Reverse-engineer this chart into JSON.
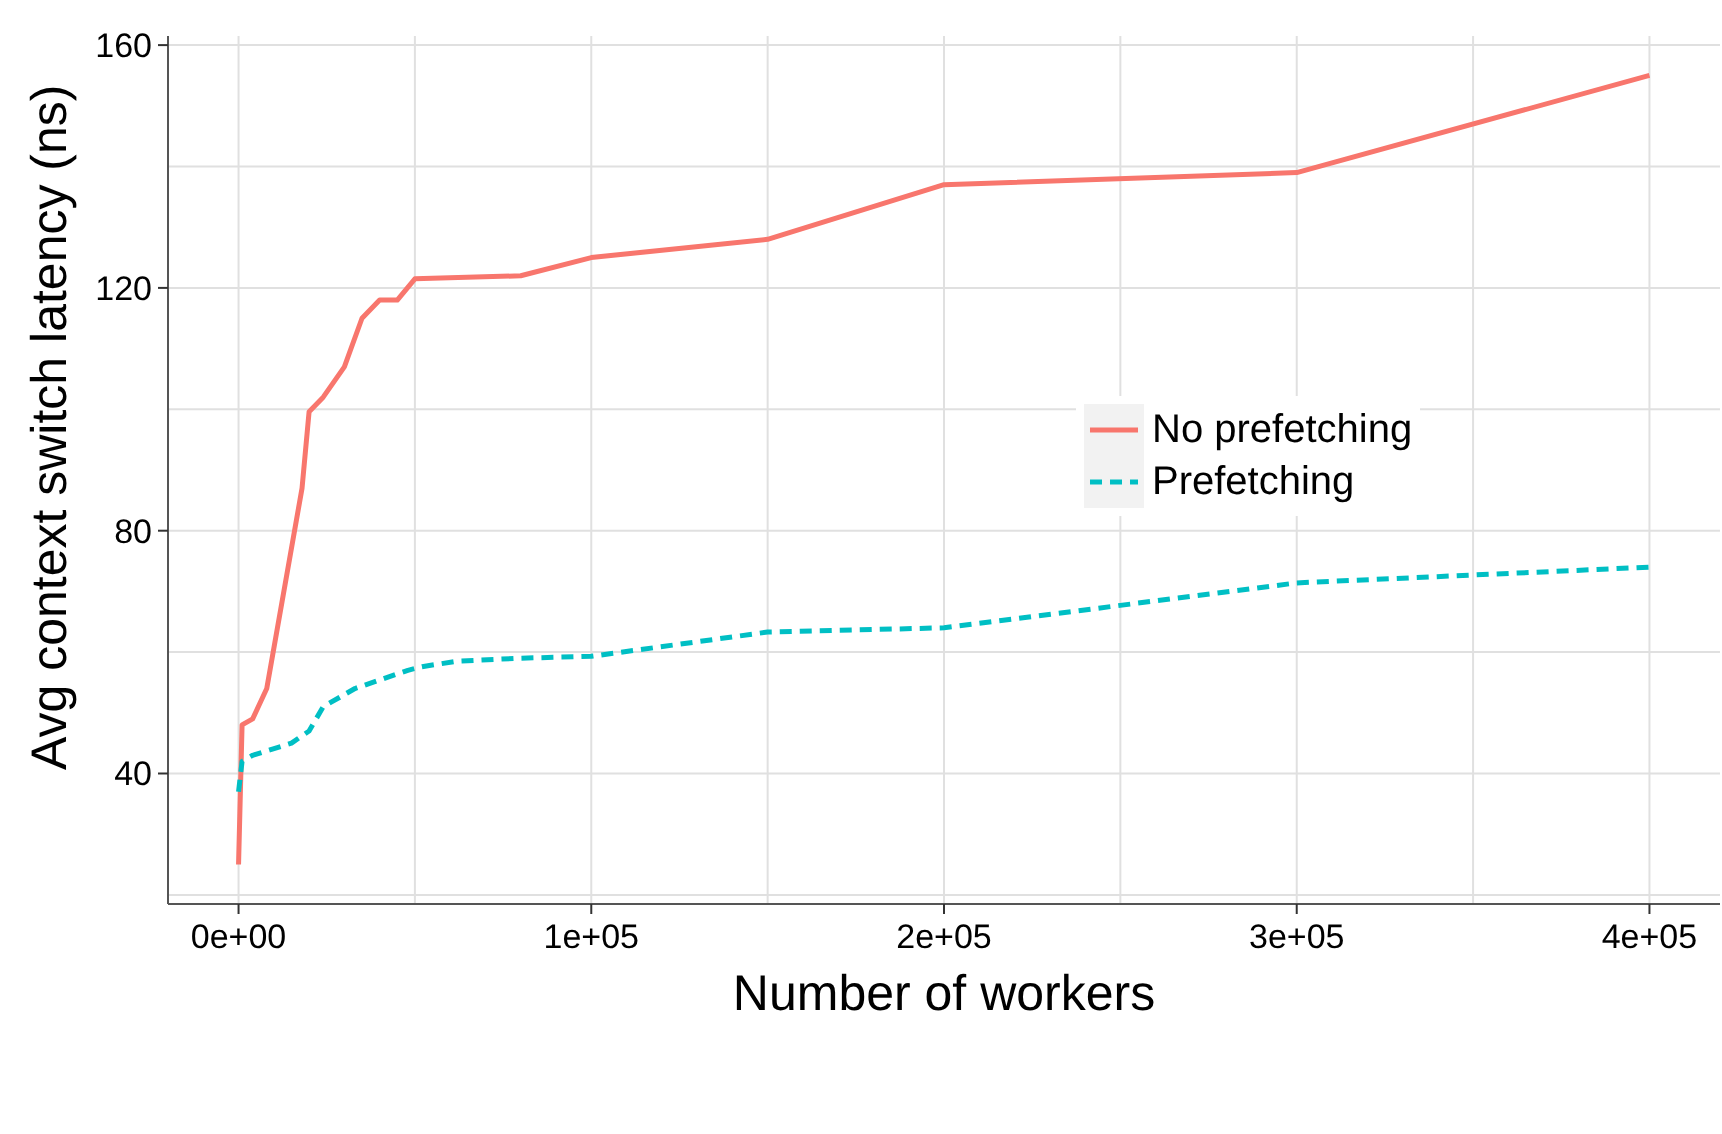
{
  "chart_data": {
    "type": "line",
    "xlabel": "Number of workers",
    "ylabel": "Avg context switch latency (ns)",
    "xlim": [
      -20000,
      420000
    ],
    "xticks": [
      {
        "value": 0,
        "label": "0e+00"
      },
      {
        "value": 50000,
        "label": null
      },
      {
        "value": 100000,
        "label": "1e+05"
      },
      {
        "value": 150000,
        "label": null
      },
      {
        "value": 200000,
        "label": "2e+05"
      },
      {
        "value": 250000,
        "label": null
      },
      {
        "value": 300000,
        "label": "3e+05"
      },
      {
        "value": 350000,
        "label": null
      },
      {
        "value": 400000,
        "label": "4e+05"
      }
    ],
    "ylim": [
      18.5,
      161.5
    ],
    "yticks": [
      {
        "value": 20,
        "label": null
      },
      40,
      {
        "value": 60,
        "label": null
      },
      80,
      {
        "value": 100,
        "label": null
      },
      120,
      {
        "value": 140,
        "label": null
      },
      160
    ],
    "grid": true,
    "legend": "right",
    "series": [
      {
        "name": "No prefetching",
        "color": "#f8766d",
        "line_style": "solid",
        "x": [
          0,
          1000,
          4000,
          8000,
          18000,
          20000,
          24000,
          30000,
          35000,
          40000,
          45000,
          50000,
          80000,
          100000,
          150000,
          200000,
          300000,
          400000
        ],
        "values": [
          25,
          48,
          49,
          54,
          87,
          99.6,
          102,
          107,
          115,
          118,
          118,
          121.5,
          122,
          125,
          128,
          137,
          139,
          155
        ]
      },
      {
        "name": "Prefetching",
        "color": "#00bfc4",
        "line_style": "dashed",
        "x": [
          0,
          1000,
          4000,
          15000,
          20000,
          24000,
          33000,
          48000,
          52000,
          62000,
          80000,
          100000,
          150000,
          200000,
          300000,
          400000
        ],
        "values": [
          37,
          42,
          43,
          45,
          47,
          51,
          54,
          57,
          57.6,
          58.5,
          59,
          59.3,
          63.3,
          64,
          71.4,
          74
        ]
      }
    ]
  }
}
